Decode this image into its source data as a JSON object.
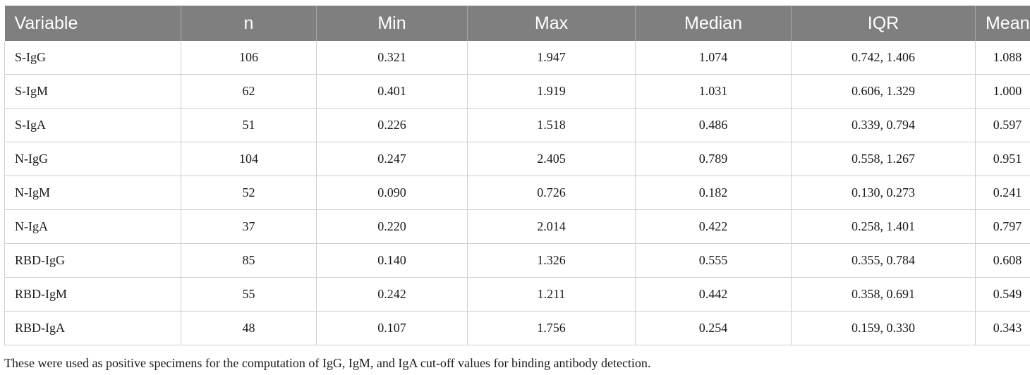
{
  "table": {
    "headers": [
      "Variable",
      "n",
      "Min",
      "Max",
      "Median",
      "IQR",
      "Mean"
    ],
    "rows": [
      [
        "S-IgG",
        "106",
        "0.321",
        "1.947",
        "1.074",
        "0.742, 1.406",
        "1.088"
      ],
      [
        "S-IgM",
        "62",
        "0.401",
        "1.919",
        "1.031",
        "0.606, 1.329",
        "1.000"
      ],
      [
        "S-IgA",
        "51",
        "0.226",
        "1.518",
        "0.486",
        "0.339, 0.794",
        "0.597"
      ],
      [
        "N-IgG",
        "104",
        "0.247",
        "2.405",
        "0.789",
        "0.558, 1.267",
        "0.951"
      ],
      [
        "N-IgM",
        "52",
        "0.090",
        "0.726",
        "0.182",
        "0.130, 0.273",
        "0.241"
      ],
      [
        "N-IgA",
        "37",
        "0.220",
        "2.014",
        "0.422",
        "0.258, 1.401",
        "0.797"
      ],
      [
        "RBD-IgG",
        "85",
        "0.140",
        "1.326",
        "0.555",
        "0.355, 0.784",
        "0.608"
      ],
      [
        "RBD-IgM",
        "55",
        "0.242",
        "1.211",
        "0.442",
        "0.358, 0.691",
        "0.549"
      ],
      [
        "RBD-IgA",
        "48",
        "0.107",
        "1.756",
        "0.254",
        "0.159, 0.330",
        "0.343"
      ]
    ]
  },
  "footnote": "These were used as positive specimens for the computation of IgG, IgM, and IgA cut-off values for binding antibody detection.",
  "colors": {
    "header_background": "#7f7f7f",
    "header_text": "#ffffff",
    "grid_lines": "#cfcfcf"
  }
}
